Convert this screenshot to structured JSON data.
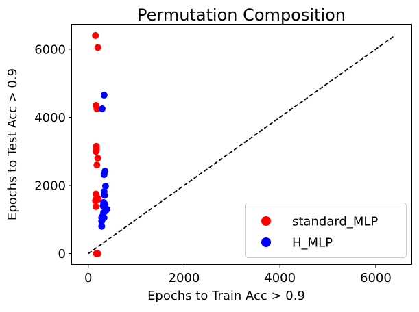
{
  "chart_data": {
    "type": "scatter",
    "title": "Permutation Composition",
    "xlabel": "Epochs to Train Acc > 0.9",
    "ylabel": "Epochs to Test Acc > 0.9",
    "xlim": [
      -340,
      6760
    ],
    "ylim": [
      -330,
      6720
    ],
    "xticks": [
      0,
      2000,
      4000,
      6000
    ],
    "yticks": [
      0,
      2000,
      4000,
      6000
    ],
    "grid": false,
    "legend_position": "lower right",
    "reference_line": {
      "style": "dashed",
      "color": "#000000",
      "x": [
        0,
        6400
      ],
      "y": [
        0,
        6400
      ]
    },
    "series": [
      {
        "name": "standard_MLP",
        "color": "#ff0000",
        "points": [
          [
            150,
            6400
          ],
          [
            200,
            6050
          ],
          [
            160,
            4350
          ],
          [
            180,
            4250
          ],
          [
            170,
            3150
          ],
          [
            160,
            3000
          ],
          [
            170,
            3050
          ],
          [
            200,
            2800
          ],
          [
            180,
            2600
          ],
          [
            160,
            1750
          ],
          [
            180,
            1650
          ],
          [
            170,
            1600
          ],
          [
            210,
            1600
          ],
          [
            150,
            1550
          ],
          [
            160,
            1380
          ],
          [
            200,
            0
          ],
          [
            170,
            0
          ]
        ]
      },
      {
        "name": "H_MLP",
        "color": "#0000ff",
        "points": [
          [
            330,
            4650
          ],
          [
            290,
            4250
          ],
          [
            350,
            2420
          ],
          [
            330,
            2320
          ],
          [
            360,
            1980
          ],
          [
            330,
            1820
          ],
          [
            340,
            1710
          ],
          [
            320,
            1500
          ],
          [
            350,
            1450
          ],
          [
            310,
            1400
          ],
          [
            390,
            1300
          ],
          [
            360,
            1250
          ],
          [
            320,
            1200
          ],
          [
            300,
            1100
          ],
          [
            280,
            1050
          ],
          [
            330,
            1050
          ],
          [
            280,
            950
          ],
          [
            280,
            800
          ]
        ]
      }
    ]
  }
}
